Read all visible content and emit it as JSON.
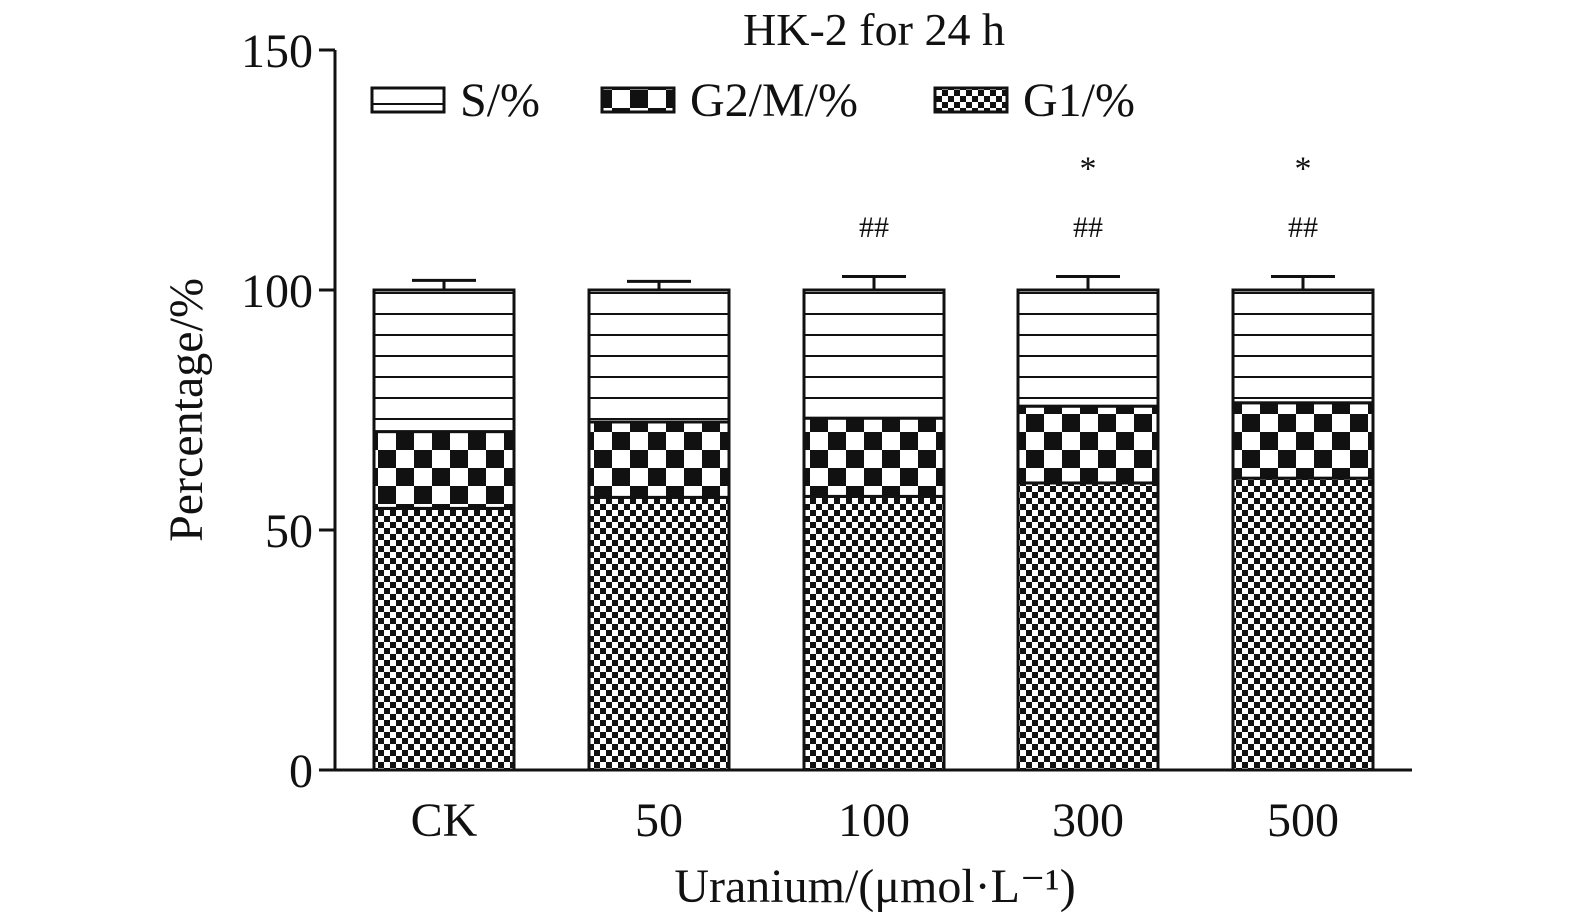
{
  "chart_data": {
    "type": "bar",
    "stacked": true,
    "title": "HK-2 for 24 h",
    "xlabel": "Uranium/(μmol·L⁻¹)",
    "ylabel": "Percentage/%",
    "ylim": [
      0,
      150
    ],
    "yticks": [
      0,
      50,
      100,
      150
    ],
    "grid": false,
    "legend_position": "top",
    "categories": [
      "CK",
      "50",
      "100",
      "300",
      "500"
    ],
    "series": [
      {
        "name": "G1/%",
        "pattern": "fine-checker",
        "values": [
          54.5,
          56.8,
          57.0,
          59.8,
          60.8
        ],
        "errors": [
          0.5,
          0.5,
          0.5,
          0.5,
          0.5
        ]
      },
      {
        "name": "G2/M/%",
        "pattern": "large-checker",
        "values": [
          16.0,
          15.7,
          16.3,
          16.0,
          15.7
        ],
        "errors": [
          1.2,
          1.0,
          1.2,
          1.3,
          1.3
        ]
      },
      {
        "name": "S/%",
        "pattern": "horizontal-stripes",
        "values": [
          29.5,
          27.5,
          26.7,
          24.2,
          23.5
        ],
        "errors": [
          2.0,
          1.8,
          2.8,
          2.8,
          2.8
        ]
      }
    ],
    "legend_order": [
      "S/%",
      "G2/M/%",
      "G1/%"
    ],
    "annotations": [
      {
        "category": "100",
        "text": "##",
        "y": 111
      },
      {
        "category": "300",
        "text": "##",
        "y": 111
      },
      {
        "category": "500",
        "text": "##",
        "y": 111
      },
      {
        "category": "300",
        "text": "*",
        "y": 123
      },
      {
        "category": "500",
        "text": "*",
        "y": 123
      }
    ]
  }
}
